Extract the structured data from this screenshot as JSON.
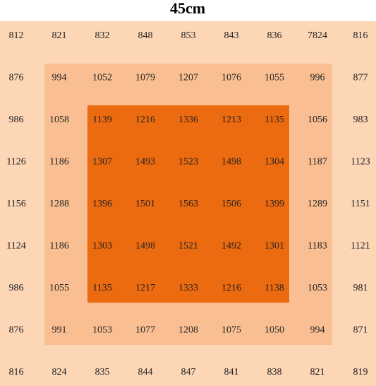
{
  "title": "45cm",
  "table": {
    "rows": [
      [
        812,
        821,
        832,
        848,
        853,
        843,
        836,
        7824,
        816
      ],
      [
        876,
        994,
        1052,
        1079,
        1207,
        1076,
        1055,
        996,
        877
      ],
      [
        986,
        1058,
        1139,
        1216,
        1336,
        1213,
        1135,
        1056,
        983
      ],
      [
        1126,
        1186,
        1307,
        1493,
        1523,
        1498,
        1304,
        1187,
        1123
      ],
      [
        1156,
        1288,
        1396,
        1501,
        1563,
        1506,
        1399,
        1289,
        1151
      ],
      [
        1124,
        1186,
        1303,
        1498,
        1521,
        1492,
        1301,
        1183,
        1121
      ],
      [
        986,
        1055,
        1135,
        1217,
        1333,
        1216,
        1138,
        1053,
        981
      ],
      [
        876,
        991,
        1053,
        1077,
        1208,
        1075,
        1050,
        994,
        871
      ],
      [
        816,
        824,
        835,
        844,
        847,
        841,
        838,
        821,
        819
      ]
    ]
  }
}
